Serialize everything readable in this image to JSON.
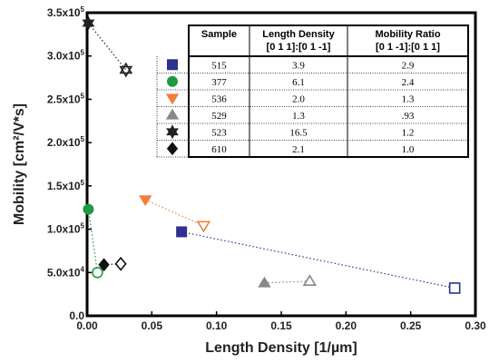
{
  "chart_data": {
    "type": "scatter",
    "xlabel": "Length Density [1/µm]",
    "ylabel": "Mobility [cm²/V*s]",
    "xlim": [
      0,
      0.3
    ],
    "ylim": [
      0,
      350000
    ],
    "x_ticks": [
      "0.00",
      "0.05",
      "0.10",
      "0.15",
      "0.20",
      "0.25",
      "0.30"
    ],
    "x_tick_values": [
      0,
      0.05,
      0.1,
      0.15,
      0.2,
      0.25,
      0.3
    ],
    "y_ticks": [
      {
        "value": 0,
        "mant": "0.0",
        "exp": ""
      },
      {
        "value": 50000,
        "mant": "5.0x10",
        "exp": "4"
      },
      {
        "value": 100000,
        "mant": "1.0x10",
        "exp": "5"
      },
      {
        "value": 150000,
        "mant": "1.5x10",
        "exp": "5"
      },
      {
        "value": 200000,
        "mant": "2.0x10",
        "exp": "5"
      },
      {
        "value": 250000,
        "mant": "2.5x10",
        "exp": "5"
      },
      {
        "value": 300000,
        "mant": "3.0x10",
        "exp": "5"
      },
      {
        "value": 350000,
        "mant": "3.5x10",
        "exp": "5"
      }
    ],
    "grid": false,
    "series": [
      {
        "marker": "square",
        "color": "#2e3192",
        "filled": {
          "x": 0.073,
          "y": 97000
        },
        "open": {
          "x": 0.284,
          "y": 32000
        }
      },
      {
        "marker": "circle",
        "color": "#1e9a44",
        "filled": {
          "x": 0.001,
          "y": 123000
        },
        "open": {
          "x": 0.008,
          "y": 50000
        }
      },
      {
        "marker": "triangle-down",
        "color": "#f07f3c",
        "filled": {
          "x": 0.045,
          "y": 134000
        },
        "open": {
          "x": 0.09,
          "y": 104000
        }
      },
      {
        "marker": "triangle-up",
        "color": "#888888",
        "filled": {
          "x": 0.137,
          "y": 38000
        },
        "open": {
          "x": 0.172,
          "y": 40000
        }
      },
      {
        "marker": "star",
        "color": "#222222",
        "filled": {
          "x": 0.001,
          "y": 338000
        },
        "open": {
          "x": 0.03,
          "y": 284000
        }
      },
      {
        "marker": "diamond",
        "color": "#111111",
        "filled": {
          "x": 0.013,
          "y": 59000
        },
        "open": {
          "x": 0.026,
          "y": 60000
        }
      }
    ],
    "table": {
      "headers": [
        "Sample",
        "Length Density",
        "Mobility Ratio"
      ],
      "subheaders": [
        "",
        "[0 1 1]:[0 1 -1]",
        "[0 1 -1]:[0 1 1]"
      ],
      "rows": [
        [
          "515",
          "3.9",
          "2.9"
        ],
        [
          "377",
          "6.1",
          "2.4"
        ],
        [
          "536",
          "2.0",
          "1.3"
        ],
        [
          "529",
          "1.3",
          ".93"
        ],
        [
          "523",
          "16.5",
          "1.2"
        ],
        [
          "610",
          "2.1",
          "1.0"
        ]
      ]
    }
  }
}
